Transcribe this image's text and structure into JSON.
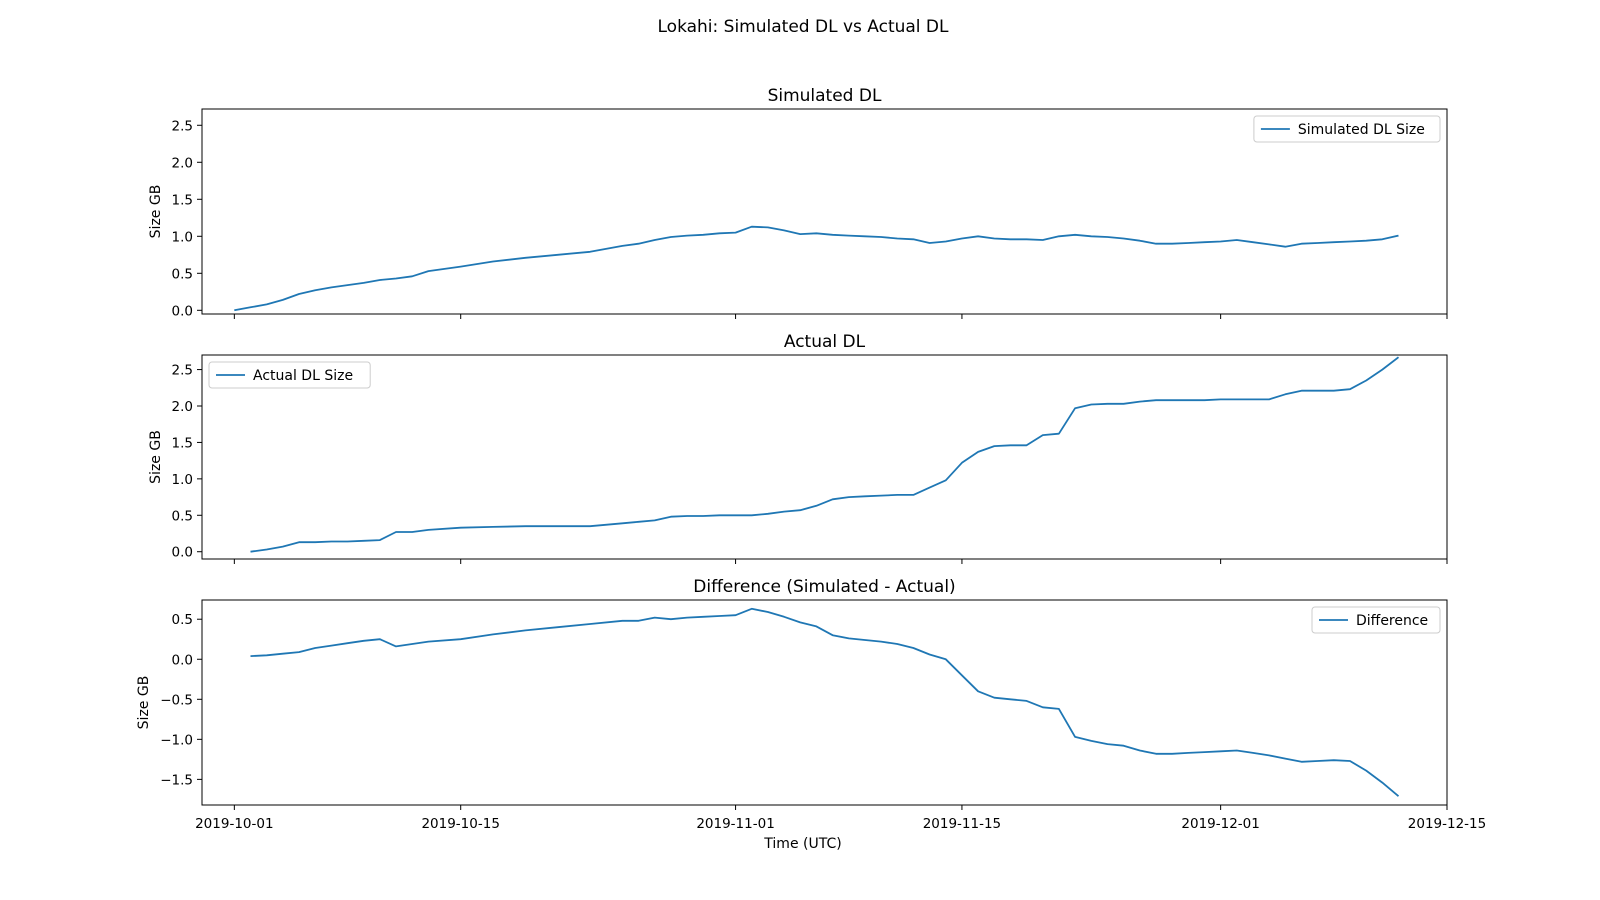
{
  "figure": {
    "title": "Lokahi: Simulated DL vs Actual DL",
    "xlabel": "Time (UTC)"
  },
  "colors": {
    "series": "#1f77b4",
    "axes": "#000000",
    "background": "#ffffff"
  },
  "chart_data": [
    {
      "type": "line",
      "title": "Simulated DL",
      "ylabel": "Size GB",
      "xlim": [
        "2019-09-29",
        "2019-12-15"
      ],
      "ylim": [
        -0.05,
        2.72
      ],
      "yticks": [
        0.0,
        0.5,
        1.0,
        1.5,
        2.0,
        2.5
      ],
      "ytick_labels": [
        "0.0",
        "0.5",
        "1.0",
        "1.5",
        "2.0",
        "2.5"
      ],
      "xticks": [
        "2019-10-01",
        "2019-10-15",
        "2019-11-01",
        "2019-11-15",
        "2019-12-01",
        "2019-12-15"
      ],
      "xtick_labels": [],
      "legend": {
        "position": "top-right"
      },
      "grid": false,
      "series": [
        {
          "name": "Simulated DL Size",
          "x": [
            "2019-10-01",
            "2019-10-02",
            "2019-10-03",
            "2019-10-04",
            "2019-10-05",
            "2019-10-06",
            "2019-10-07",
            "2019-10-08",
            "2019-10-09",
            "2019-10-10",
            "2019-10-11",
            "2019-10-12",
            "2019-10-13",
            "2019-10-15",
            "2019-10-17",
            "2019-10-19",
            "2019-10-21",
            "2019-10-23",
            "2019-10-25",
            "2019-10-26",
            "2019-10-27",
            "2019-10-28",
            "2019-10-29",
            "2019-10-30",
            "2019-10-31",
            "2019-11-01",
            "2019-11-02",
            "2019-11-03",
            "2019-11-04",
            "2019-11-05",
            "2019-11-06",
            "2019-11-07",
            "2019-11-08",
            "2019-11-09",
            "2019-11-10",
            "2019-11-11",
            "2019-11-12",
            "2019-11-13",
            "2019-11-14",
            "2019-11-15",
            "2019-11-16",
            "2019-11-17",
            "2019-11-18",
            "2019-11-19",
            "2019-11-20",
            "2019-11-21",
            "2019-11-22",
            "2019-11-23",
            "2019-11-24",
            "2019-11-25",
            "2019-11-26",
            "2019-11-27",
            "2019-11-28",
            "2019-11-29",
            "2019-11-30",
            "2019-12-01",
            "2019-12-02",
            "2019-12-03",
            "2019-12-04",
            "2019-12-05",
            "2019-12-06",
            "2019-12-07",
            "2019-12-08",
            "2019-12-09",
            "2019-12-10",
            "2019-12-11",
            "2019-12-12"
          ],
          "y": [
            0.0,
            0.04,
            0.08,
            0.14,
            0.22,
            0.27,
            0.31,
            0.34,
            0.37,
            0.41,
            0.43,
            0.46,
            0.53,
            0.59,
            0.66,
            0.71,
            0.75,
            0.79,
            0.87,
            0.9,
            0.95,
            0.99,
            1.01,
            1.02,
            1.04,
            1.05,
            1.13,
            1.12,
            1.08,
            1.03,
            1.04,
            1.02,
            1.01,
            1.0,
            0.99,
            0.97,
            0.96,
            0.91,
            0.93,
            0.97,
            1.0,
            0.97,
            0.96,
            0.96,
            0.95,
            1.0,
            1.02,
            1.0,
            0.99,
            0.97,
            0.94,
            0.9,
            0.9,
            0.91,
            0.92,
            0.93,
            0.95,
            0.92,
            0.89,
            0.86,
            0.9,
            0.91,
            0.92,
            0.93,
            0.94,
            0.96,
            1.01
          ]
        }
      ]
    },
    {
      "type": "line",
      "title": "Actual DL",
      "ylabel": "Size GB",
      "xlim": [
        "2019-09-29",
        "2019-12-15"
      ],
      "ylim": [
        -0.1,
        2.7
      ],
      "yticks": [
        0.0,
        0.5,
        1.0,
        1.5,
        2.0,
        2.5
      ],
      "ytick_labels": [
        "0.0",
        "0.5",
        "1.0",
        "1.5",
        "2.0",
        "2.5"
      ],
      "xticks": [
        "2019-10-01",
        "2019-10-15",
        "2019-11-01",
        "2019-11-15",
        "2019-12-01",
        "2019-12-15"
      ],
      "xtick_labels": [],
      "legend": {
        "position": "top-left"
      },
      "grid": false,
      "series": [
        {
          "name": "Actual DL Size",
          "x": [
            "2019-10-02",
            "2019-10-03",
            "2019-10-04",
            "2019-10-05",
            "2019-10-06",
            "2019-10-07",
            "2019-10-08",
            "2019-10-09",
            "2019-10-10",
            "2019-10-11",
            "2019-10-12",
            "2019-10-13",
            "2019-10-15",
            "2019-10-17",
            "2019-10-19",
            "2019-10-21",
            "2019-10-23",
            "2019-10-25",
            "2019-10-26",
            "2019-10-27",
            "2019-10-28",
            "2019-10-29",
            "2019-10-30",
            "2019-10-31",
            "2019-11-01",
            "2019-11-02",
            "2019-11-03",
            "2019-11-04",
            "2019-11-05",
            "2019-11-06",
            "2019-11-07",
            "2019-11-08",
            "2019-11-09",
            "2019-11-10",
            "2019-11-11",
            "2019-11-12",
            "2019-11-13",
            "2019-11-14",
            "2019-11-15",
            "2019-11-16",
            "2019-11-17",
            "2019-11-18",
            "2019-11-19",
            "2019-11-20",
            "2019-11-21",
            "2019-11-22",
            "2019-11-23",
            "2019-11-24",
            "2019-11-25",
            "2019-11-26",
            "2019-11-27",
            "2019-11-28",
            "2019-11-29",
            "2019-11-30",
            "2019-12-01",
            "2019-12-02",
            "2019-12-03",
            "2019-12-04",
            "2019-12-05",
            "2019-12-06",
            "2019-12-07",
            "2019-12-08",
            "2019-12-09",
            "2019-12-10",
            "2019-12-11",
            "2019-12-12"
          ],
          "y": [
            0.0,
            0.03,
            0.07,
            0.13,
            0.13,
            0.14,
            0.14,
            0.15,
            0.16,
            0.27,
            0.27,
            0.3,
            0.33,
            0.34,
            0.35,
            0.35,
            0.35,
            0.39,
            0.41,
            0.43,
            0.48,
            0.49,
            0.49,
            0.5,
            0.5,
            0.5,
            0.52,
            0.55,
            0.57,
            0.63,
            0.72,
            0.75,
            0.76,
            0.77,
            0.78,
            0.78,
            0.88,
            0.98,
            1.22,
            1.37,
            1.45,
            1.46,
            1.46,
            1.6,
            1.62,
            1.97,
            2.02,
            2.03,
            2.03,
            2.06,
            2.08,
            2.08,
            2.08,
            2.08,
            2.09,
            2.09,
            2.09,
            2.09,
            2.16,
            2.21,
            2.21,
            2.21,
            2.23,
            2.35,
            2.5,
            2.67
          ]
        }
      ]
    },
    {
      "type": "line",
      "title": "Difference (Simulated - Actual)",
      "ylabel": "Size GB",
      "xlim": [
        "2019-09-29",
        "2019-12-15"
      ],
      "ylim": [
        -1.82,
        0.74
      ],
      "yticks": [
        0.5,
        0.0,
        -0.5,
        -1.0,
        -1.5
      ],
      "ytick_labels": [
        "0.5",
        "0.0",
        "−0.5",
        "−1.0",
        "−1.5"
      ],
      "xticks": [
        "2019-10-01",
        "2019-10-15",
        "2019-11-01",
        "2019-11-15",
        "2019-12-01",
        "2019-12-15"
      ],
      "xtick_labels": [
        "2019-10-01",
        "2019-10-15",
        "2019-11-01",
        "2019-11-15",
        "2019-12-01",
        "2019-12-15"
      ],
      "legend": {
        "position": "top-right"
      },
      "grid": false,
      "series": [
        {
          "name": "Difference",
          "x": [
            "2019-10-02",
            "2019-10-03",
            "2019-10-04",
            "2019-10-05",
            "2019-10-06",
            "2019-10-07",
            "2019-10-08",
            "2019-10-09",
            "2019-10-10",
            "2019-10-11",
            "2019-10-13",
            "2019-10-15",
            "2019-10-17",
            "2019-10-19",
            "2019-10-21",
            "2019-10-23",
            "2019-10-25",
            "2019-10-26",
            "2019-10-27",
            "2019-10-28",
            "2019-10-29",
            "2019-10-30",
            "2019-10-31",
            "2019-11-01",
            "2019-11-02",
            "2019-11-03",
            "2019-11-04",
            "2019-11-05",
            "2019-11-06",
            "2019-11-07",
            "2019-11-08",
            "2019-11-09",
            "2019-11-10",
            "2019-11-11",
            "2019-11-12",
            "2019-11-13",
            "2019-11-14",
            "2019-11-15",
            "2019-11-16",
            "2019-11-17",
            "2019-11-18",
            "2019-11-19",
            "2019-11-20",
            "2019-11-21",
            "2019-11-22",
            "2019-11-23",
            "2019-11-24",
            "2019-11-25",
            "2019-11-26",
            "2019-11-27",
            "2019-11-28",
            "2019-11-29",
            "2019-11-30",
            "2019-12-01",
            "2019-12-02",
            "2019-12-03",
            "2019-12-04",
            "2019-12-05",
            "2019-12-06",
            "2019-12-07",
            "2019-12-08",
            "2019-12-09",
            "2019-12-10",
            "2019-12-11",
            "2019-12-12"
          ],
          "y": [
            0.04,
            0.05,
            0.07,
            0.09,
            0.14,
            0.17,
            0.2,
            0.23,
            0.25,
            0.16,
            0.22,
            0.25,
            0.31,
            0.36,
            0.4,
            0.44,
            0.48,
            0.48,
            0.52,
            0.5,
            0.52,
            0.53,
            0.54,
            0.55,
            0.63,
            0.59,
            0.53,
            0.46,
            0.41,
            0.3,
            0.26,
            0.24,
            0.22,
            0.19,
            0.14,
            0.06,
            0.0,
            -0.2,
            -0.4,
            -0.48,
            -0.5,
            -0.52,
            -0.6,
            -0.62,
            -0.97,
            -1.02,
            -1.06,
            -1.08,
            -1.14,
            -1.18,
            -1.18,
            -1.17,
            -1.16,
            -1.15,
            -1.14,
            -1.17,
            -1.2,
            -1.24,
            -1.28,
            -1.27,
            -1.26,
            -1.27,
            -1.39,
            -1.54,
            -1.71
          ]
        }
      ]
    }
  ]
}
